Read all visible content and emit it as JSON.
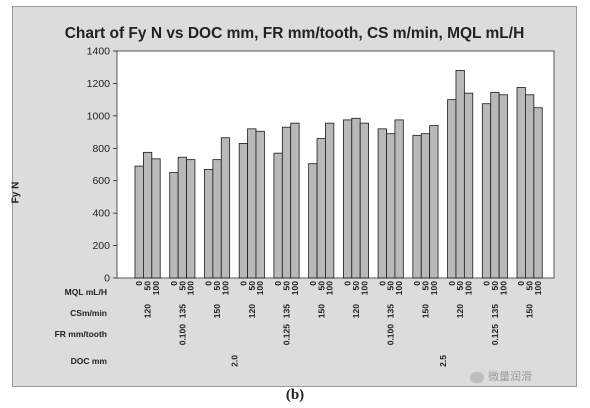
{
  "chart_data": {
    "type": "bar",
    "title": "Chart of Fy N vs DOC mm, FR mm/tooth, CS m/min, MQL mL/H",
    "ylabel": "Fy N",
    "ylim": [
      0,
      1400
    ],
    "yticks": [
      0,
      200,
      400,
      600,
      800,
      1000,
      1200,
      1400
    ],
    "grid": false,
    "factor_labels": [
      "MQL mL/H",
      "CSm/min",
      "FR mm/tooth",
      "DOC mm"
    ],
    "mql_levels": [
      "0",
      "50",
      "100"
    ],
    "groups": [
      {
        "doc": "2.0",
        "fr": "0.100",
        "cs": "120",
        "values": [
          690,
          775,
          735
        ]
      },
      {
        "doc": "2.0",
        "fr": "0.100",
        "cs": "135",
        "values": [
          650,
          745,
          730
        ]
      },
      {
        "doc": "2.0",
        "fr": "0.100",
        "cs": "150",
        "values": [
          670,
          730,
          865
        ]
      },
      {
        "doc": "2.0",
        "fr": "0.125",
        "cs": "120",
        "values": [
          830,
          920,
          905
        ]
      },
      {
        "doc": "2.0",
        "fr": "0.125",
        "cs": "135",
        "values": [
          770,
          930,
          955
        ]
      },
      {
        "doc": "2.0",
        "fr": "0.125",
        "cs": "150",
        "values": [
          705,
          860,
          955
        ]
      },
      {
        "doc": "2.5",
        "fr": "0.100",
        "cs": "120",
        "values": [
          975,
          985,
          955
        ]
      },
      {
        "doc": "2.5",
        "fr": "0.100",
        "cs": "135",
        "values": [
          920,
          890,
          975
        ]
      },
      {
        "doc": "2.5",
        "fr": "0.100",
        "cs": "150",
        "values": [
          880,
          890,
          940
        ]
      },
      {
        "doc": "2.5",
        "fr": "0.125",
        "cs": "120",
        "values": [
          1100,
          1280,
          1140
        ]
      },
      {
        "doc": "2.5",
        "fr": "0.125",
        "cs": "135",
        "values": [
          1075,
          1145,
          1130
        ]
      },
      {
        "doc": "2.5",
        "fr": "0.125",
        "cs": "150",
        "values": [
          1175,
          1130,
          1050
        ]
      }
    ],
    "fr_labels": [
      {
        "label": "0.100",
        "groups": [
          0,
          1,
          2
        ]
      },
      {
        "label": "0.125",
        "groups": [
          3,
          4,
          5
        ]
      },
      {
        "label": "0.100",
        "groups": [
          6,
          7,
          8
        ]
      },
      {
        "label": "0.125",
        "groups": [
          9,
          10,
          11
        ]
      }
    ],
    "doc_labels": [
      {
        "label": "2.0",
        "groups": [
          0,
          5
        ]
      },
      {
        "label": "2.5",
        "groups": [
          6,
          11
        ]
      }
    ],
    "colors": {
      "bar_fill": "#b9b9b9",
      "bar_stroke": "#1a1a1a",
      "plot_bg": "#ffffff",
      "frame_bg": "#dcdcdc"
    }
  },
  "caption": "(b)",
  "watermark": "微量润滑"
}
